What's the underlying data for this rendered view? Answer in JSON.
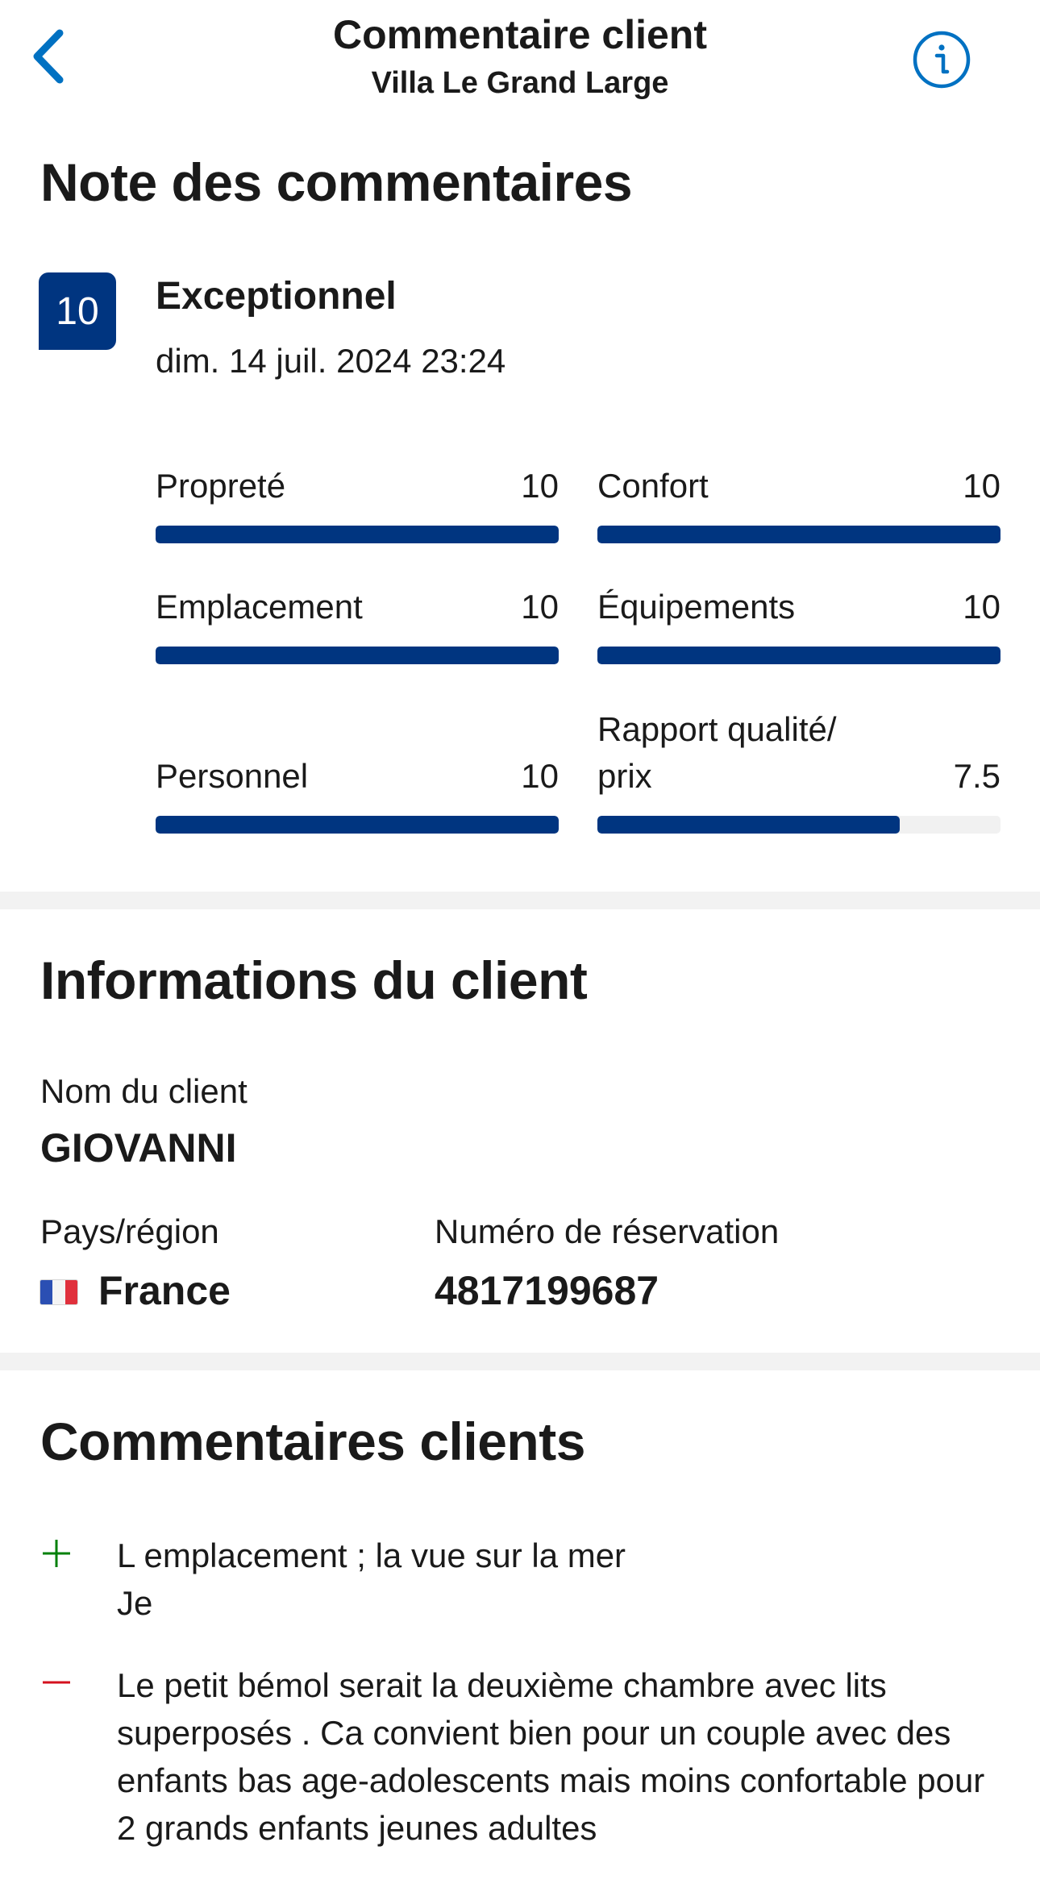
{
  "header": {
    "title": "Commentaire client",
    "subtitle": "Villa Le Grand Large",
    "accent_color": "#0071c2",
    "back_icon": "chevron-left-icon",
    "info_icon": "info-icon"
  },
  "score_section": {
    "title": "Note des commentaires",
    "score": "10",
    "label": "Exceptionnel",
    "date": "dim. 14 juil. 2024 23:24",
    "badge_color": "#003580",
    "ratings": [
      {
        "name": "Propreté",
        "value": "10",
        "fraction": 1.0
      },
      {
        "name": "Confort",
        "value": "10",
        "fraction": 1.0
      },
      {
        "name": "Emplacement",
        "value": "10",
        "fraction": 1.0
      },
      {
        "name": "Équipements",
        "value": "10",
        "fraction": 1.0
      },
      {
        "name": "Personnel",
        "value": "10",
        "fraction": 1.0
      },
      {
        "name": "Rapport qualité/\nprix",
        "value": "7.5",
        "fraction": 0.75
      }
    ]
  },
  "client_section": {
    "title": "Informations du client",
    "name_label": "Nom du client",
    "name_value": "GIOVANNI",
    "country_label": "Pays/région",
    "country_value": "France",
    "country_flag": "france-flag-icon",
    "booking_label": "Numéro de réservation",
    "booking_value": "4817199687"
  },
  "comments_section": {
    "title": "Commentaires clients",
    "positive_icon": "plus-icon",
    "positive_color": "#008009",
    "positive": "L emplacement ; la vue sur la mer\nJe",
    "negative_icon": "minus-icon",
    "negative_color": "#d4111e",
    "negative": "Le petit bémol serait la deuxième chambre avec lits superposés . Ca convient bien pour un couple avec des enfants bas age-adolescents mais moins confortable pour 2 grands enfants jeunes adultes"
  }
}
